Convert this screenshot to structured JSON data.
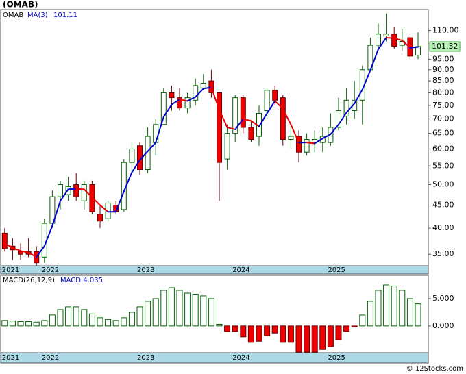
{
  "chart_data": [
    {
      "type": "candlestick",
      "title": "(OMAB)",
      "ticker": "OMAB",
      "categories": [
        "2021",
        null,
        null,
        null,
        null,
        "2022",
        null,
        null,
        null,
        null,
        null,
        null,
        null,
        null,
        null,
        null,
        null,
        "2023",
        null,
        null,
        null,
        null,
        null,
        null,
        null,
        null,
        null,
        null,
        null,
        "2024",
        null,
        null,
        null,
        null,
        null,
        null,
        null,
        null,
        null,
        null,
        null,
        "2025",
        null,
        null,
        null,
        null,
        null,
        null,
        null,
        null,
        null,
        null,
        null
      ],
      "open": [
        39,
        36.5,
        35.5,
        35.5,
        35.5,
        34.5,
        41,
        47,
        47.5,
        50,
        46,
        50,
        43,
        42,
        45,
        44,
        56,
        61,
        54,
        62,
        68,
        80,
        78,
        74,
        77,
        82,
        85,
        80,
        57,
        65,
        78,
        67,
        64,
        73,
        81,
        78,
        63,
        64,
        59,
        62,
        62,
        62,
        67,
        71,
        73,
        77,
        90,
        102,
        107,
        108,
        102,
        106,
        97
      ],
      "high": [
        40,
        38,
        37,
        38,
        36.5,
        42,
        48.5,
        51,
        52,
        53,
        51,
        51,
        45,
        46,
        46,
        57,
        62,
        62,
        67,
        70,
        82,
        83,
        82,
        80,
        86,
        88,
        90,
        80,
        68,
        79,
        79,
        69,
        75,
        82,
        83,
        79,
        68,
        66,
        65,
        66,
        67,
        72,
        78,
        82,
        85,
        92,
        106,
        114,
        120,
        112,
        111,
        107,
        109
      ],
      "low": [
        35.5,
        34,
        34,
        34.5,
        33,
        33.5,
        40,
        44,
        46,
        46,
        44,
        43,
        40,
        41.5,
        43,
        43.5,
        53.5,
        52.5,
        53,
        58,
        68,
        73,
        73,
        72,
        75,
        81,
        78,
        46,
        54,
        62,
        65,
        62,
        61,
        70,
        75,
        61,
        60,
        56,
        58,
        59,
        59,
        61,
        66,
        68,
        70,
        68,
        90,
        100,
        104,
        100,
        99,
        95,
        95
      ],
      "close": [
        36,
        35.8,
        35,
        35,
        33.5,
        41,
        47,
        50,
        49.5,
        47,
        50,
        43.5,
        41.5,
        45.5,
        43.5,
        56,
        60,
        54,
        64,
        68,
        80,
        78,
        74,
        78,
        83,
        84,
        80,
        56,
        65,
        78,
        67,
        63,
        72,
        81,
        77,
        63,
        64,
        59,
        63,
        63,
        64,
        67,
        73,
        77,
        77,
        90,
        102,
        108,
        108,
        101.5,
        104,
        96.5,
        101.32
      ],
      "up_color": "#ffffff",
      "up_edge": "#006400",
      "down_color": "#ee0000",
      "down_edge": "#660000",
      "series": [
        {
          "name": "MA(3)",
          "color": "#0000cc",
          "down_color": "#ee0000",
          "values": [
            37,
            36.2,
            35.6,
            35.3,
            34.5,
            36.5,
            40.5,
            46,
            48.8,
            48.9,
            48.8,
            46.8,
            45,
            43.5,
            43.5,
            48.3,
            53.2,
            56.7,
            59.3,
            62,
            70.7,
            75.3,
            77.3,
            76.7,
            78.3,
            81.7,
            82.3,
            73.3,
            67,
            66.3,
            70,
            69.3,
            67.3,
            72,
            76.7,
            73.7,
            68,
            62,
            62,
            61.7,
            63.3,
            64.7,
            68,
            72.3,
            75.7,
            81.3,
            89.7,
            100,
            106,
            105.8,
            104.5,
            100.7,
            101.11
          ]
        }
      ],
      "log_scale": true,
      "ylim": [
        33,
        122
      ],
      "yticks": [
        {
          "value": 35,
          "label": "35.00"
        },
        {
          "value": 40,
          "label": "40.00"
        },
        {
          "value": 45,
          "label": "45.00"
        },
        {
          "value": 50,
          "label": "50.00"
        },
        {
          "value": 55,
          "label": "55.00"
        },
        {
          "value": 60,
          "label": "60.00"
        },
        {
          "value": 65,
          "label": "65.00"
        },
        {
          "value": 70,
          "label": "70.00"
        },
        {
          "value": 75,
          "label": "75.00"
        },
        {
          "value": 80,
          "label": "80.00"
        },
        {
          "value": 85,
          "label": "85.00"
        },
        {
          "value": 90,
          "label": "90.00"
        },
        {
          "value": 95,
          "label": "95.00"
        },
        {
          "value": 110,
          "label": "110.00"
        }
      ],
      "footer": "© 12Stocks.com"
    },
    {
      "type": "bar",
      "title": "MACD(26,12,9)",
      "legend": "MACD:4.035",
      "values": [
        1.0,
        0.9,
        0.8,
        0.8,
        0.7,
        1.0,
        2.0,
        3.0,
        3.5,
        3.5,
        3.0,
        2.2,
        1.5,
        1.2,
        1.0,
        1.5,
        2.5,
        3.5,
        4.5,
        5.0,
        6.5,
        7.0,
        6.5,
        6.0,
        5.8,
        5.5,
        5.0,
        0.3,
        -1.0,
        -1.0,
        -2.0,
        -3.0,
        -2.8,
        -1.8,
        -1.3,
        -3.0,
        -3.0,
        -4.8,
        -4.8,
        -4.8,
        -4.3,
        -3.8,
        -2.5,
        -1.0,
        -0.2,
        2.0,
        4.5,
        6.5,
        7.5,
        7.3,
        6.5,
        5.0,
        4.035
      ],
      "up_color": "#ffffff",
      "up_edge": "#006400",
      "down_color": "#ee0000",
      "down_edge": "#660000",
      "ylim": [
        -4.9,
        9.25
      ],
      "yticks": [
        {
          "value": 5,
          "label": "5.000"
        },
        {
          "value": 0,
          "label": "0.000"
        }
      ]
    }
  ]
}
